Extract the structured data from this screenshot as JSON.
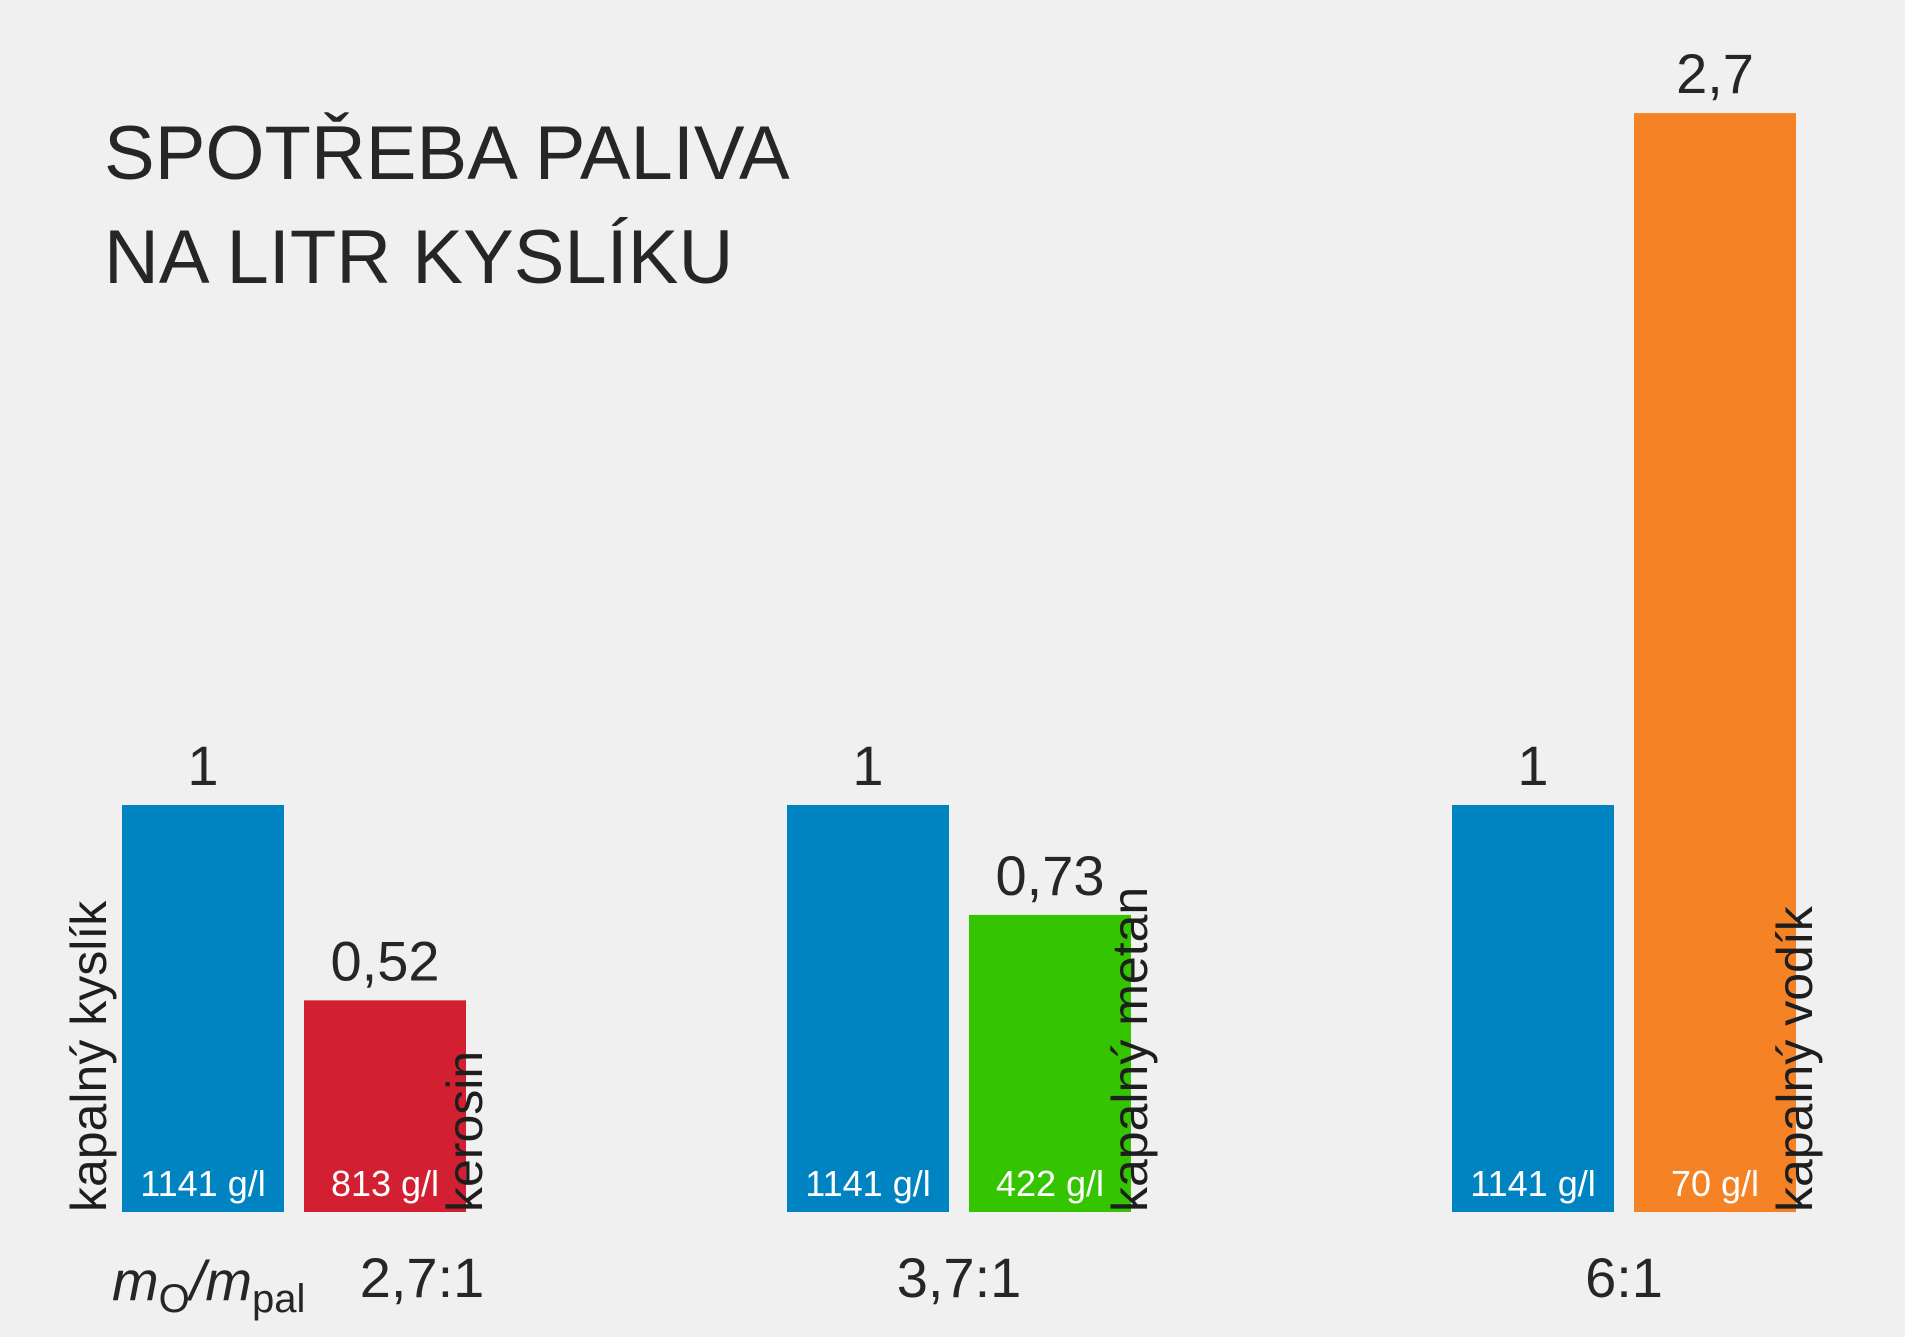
{
  "chart_data": {
    "type": "bar",
    "title_lines": [
      "SPOTŘEBA PALIVA",
      "NA LITR KYSLÍKU"
    ],
    "ratio_label": {
      "m": "m",
      "o_sub": "O",
      "slash": "/",
      "m2": "m",
      "pal_sub": "pal"
    },
    "ymax": 2.7,
    "groups": [
      {
        "ratio": "2,7:1",
        "bars": [
          {
            "value": 1,
            "value_label": "1",
            "density": "1141 g/l",
            "color": "#0083c1",
            "side_label": "kapalný kyslík",
            "side_label_position": "left"
          },
          {
            "value": 0.52,
            "value_label": "0,52",
            "density": "813 g/l",
            "color": "#d21f31",
            "side_label": "kerosin",
            "side_label_position": "right"
          }
        ]
      },
      {
        "ratio": "3,7:1",
        "bars": [
          {
            "value": 1,
            "value_label": "1",
            "density": "1141 g/l",
            "color": "#0083c1",
            "side_label": "",
            "side_label_position": "none"
          },
          {
            "value": 0.73,
            "value_label": "0,73",
            "density": "422 g/l",
            "color": "#34c400",
            "side_label": "kapalný metan",
            "side_label_position": "right"
          }
        ]
      },
      {
        "ratio": "6:1",
        "bars": [
          {
            "value": 1,
            "value_label": "1",
            "density": "1141 g/l",
            "color": "#0083c1",
            "side_label": "",
            "side_label_position": "none"
          },
          {
            "value": 2.7,
            "value_label": "2,7",
            "density": "70 g/l",
            "color": "#f58225",
            "side_label": "kapalný vodík",
            "side_label_position": "right"
          }
        ]
      }
    ]
  }
}
